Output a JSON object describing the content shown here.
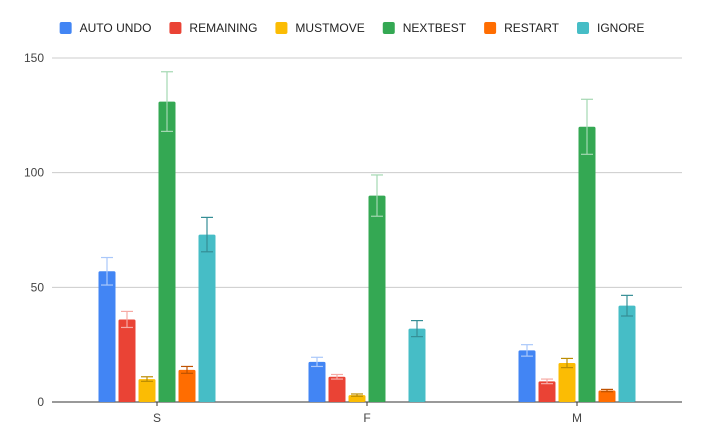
{
  "chart_data": {
    "type": "bar",
    "categories": [
      "S",
      "F",
      "M"
    ],
    "ylim": [
      0,
      150
    ],
    "yticks": [
      0,
      50,
      100,
      150
    ],
    "grid": true,
    "legend_position": "top",
    "error_bars": true,
    "series": [
      {
        "name": "AUTO UNDO",
        "color": "#4285f4",
        "values": [
          57,
          17.5,
          22.5
        ],
        "errors": [
          6,
          2,
          2.5
        ]
      },
      {
        "name": "REMAINING",
        "color": "#ea4335",
        "values": [
          36,
          11,
          9
        ],
        "errors": [
          3.5,
          1,
          1
        ]
      },
      {
        "name": "MUSTMOVE",
        "color": "#fbbc04",
        "values": [
          10,
          3,
          17
        ],
        "errors": [
          1,
          0.5,
          2
        ]
      },
      {
        "name": "NEXTBEST",
        "color": "#34a853",
        "values": [
          131,
          90,
          120
        ],
        "errors": [
          13,
          9,
          12
        ]
      },
      {
        "name": "RESTART",
        "color": "#ff6d01",
        "values": [
          14,
          0,
          5
        ],
        "errors": [
          1.5,
          0,
          0.5
        ]
      },
      {
        "name": "IGNORE",
        "color": "#46bdc6",
        "values": [
          73,
          32,
          42
        ],
        "errors": [
          7.5,
          3.5,
          4.5
        ]
      }
    ]
  }
}
